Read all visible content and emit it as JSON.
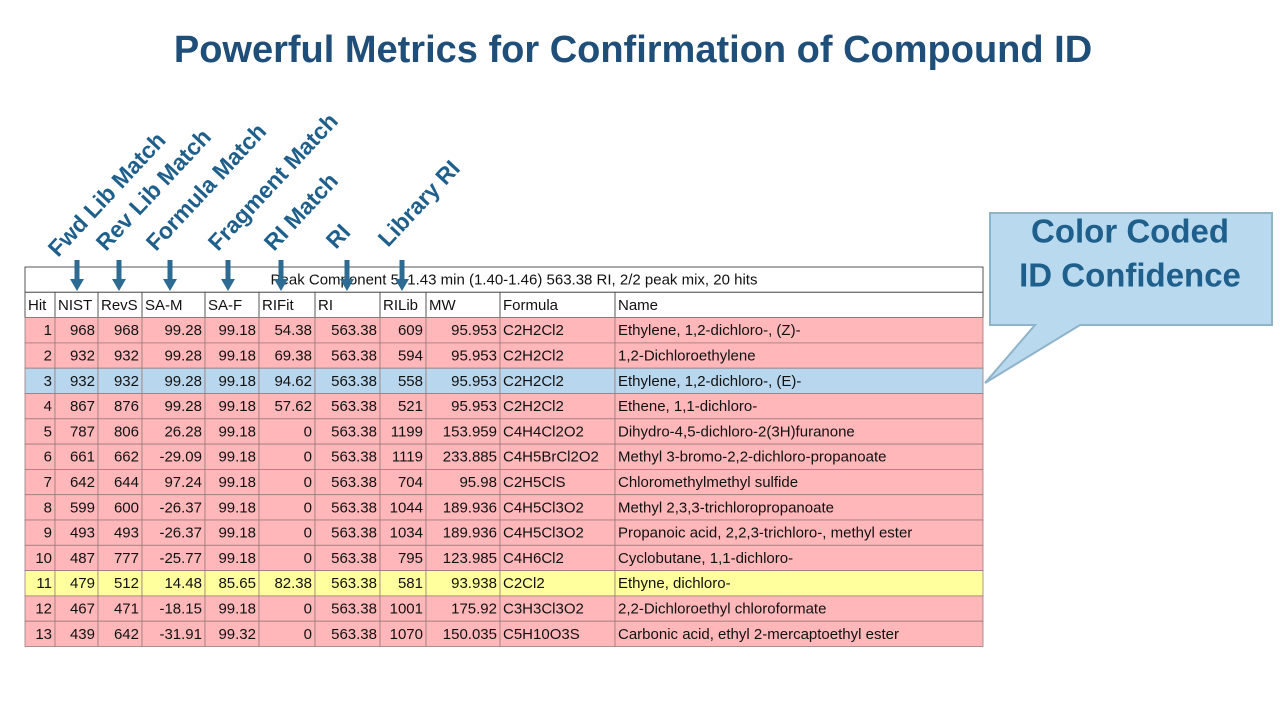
{
  "header": {
    "title": "Powerful Metrics for Confirmation of Compound ID"
  },
  "metric_labels": [
    "Fwd Lib Match",
    "Rev Lib Match",
    "Formula Match",
    "Fragment Match",
    "RI Match",
    "RI",
    "Library RI"
  ],
  "callout": {
    "lines": [
      "Color Coded",
      "ID Confidence"
    ]
  },
  "table": {
    "caption": "Peak Component 5: 1.43 min (1.40-1.46) 563.38 RI, 2/2 peak mix, 20 hits",
    "columns": [
      "Hit",
      "NIST",
      "RevS",
      "SA-M",
      "SA-F",
      "RIFit",
      "RI",
      "RILib",
      "MW",
      "Formula",
      "Name"
    ],
    "rows": [
      [
        1,
        968,
        968,
        99.28,
        99.18,
        54.38,
        563.38,
        609,
        95.953,
        "C2H2Cl2",
        "Ethylene, 1,2-dichloro-, (Z)-"
      ],
      [
        2,
        932,
        932,
        99.28,
        99.18,
        69.38,
        563.38,
        594,
        95.953,
        "C2H2Cl2",
        "1,2-Dichloroethylene"
      ],
      [
        3,
        932,
        932,
        99.28,
        99.18,
        94.62,
        563.38,
        558,
        95.953,
        "C2H2Cl2",
        "Ethylene, 1,2-dichloro-, (E)-"
      ],
      [
        4,
        867,
        876,
        99.28,
        99.18,
        57.62,
        563.38,
        521,
        95.953,
        "C2H2Cl2",
        "Ethene, 1,1-dichloro-"
      ],
      [
        5,
        787,
        806,
        26.28,
        99.18,
        0,
        563.38,
        1199,
        153.959,
        "C4H4Cl2O2",
        "Dihydro-4,5-dichloro-2(3H)furanone"
      ],
      [
        6,
        661,
        662,
        -29.09,
        99.18,
        0,
        563.38,
        1119,
        233.885,
        "C4H5BrCl2O2",
        "Methyl 3-bromo-2,2-dichloro-propanoate"
      ],
      [
        7,
        642,
        644,
        97.24,
        99.18,
        0,
        563.38,
        704,
        95.98,
        "C2H5ClS",
        "Chloromethylmethyl sulfide"
      ],
      [
        8,
        599,
        600,
        -26.37,
        99.18,
        0,
        563.38,
        1044,
        189.936,
        "C4H5Cl3O2",
        "Methyl 2,3,3-trichloropropanoate"
      ],
      [
        9,
        493,
        493,
        -26.37,
        99.18,
        0,
        563.38,
        1034,
        189.936,
        "C4H5Cl3O2",
        "Propanoic acid, 2,2,3-trichloro-, methyl ester"
      ],
      [
        10,
        487,
        777,
        -25.77,
        99.18,
        0,
        563.38,
        795,
        123.985,
        "C4H6Cl2",
        "Cyclobutane, 1,1-dichloro-"
      ],
      [
        11,
        479,
        512,
        14.48,
        85.65,
        82.38,
        563.38,
        581,
        93.938,
        "C2Cl2",
        "Ethyne, dichloro-"
      ],
      [
        12,
        467,
        471,
        -18.15,
        99.18,
        0,
        563.38,
        1001,
        175.92,
        "C3H3Cl3O2",
        "2,2-Dichloroethyl chloroformate"
      ],
      [
        13,
        439,
        642,
        -31.91,
        99.32,
        0,
        563.38,
        1070,
        150.035,
        "C5H10O3S",
        "Carbonic acid, ethyl 2-mercaptoethyl ester"
      ]
    ],
    "row_colors": [
      "#ffb7b9",
      "#ffb7b9",
      "#b8d7ee",
      "#ffb7b9",
      "#ffb7b9",
      "#ffb7b9",
      "#ffb7b9",
      "#ffb7b9",
      "#ffb7b9",
      "#ffb7b9",
      "#ffff9e",
      "#ffb7b9",
      "#ffb7b9"
    ]
  }
}
